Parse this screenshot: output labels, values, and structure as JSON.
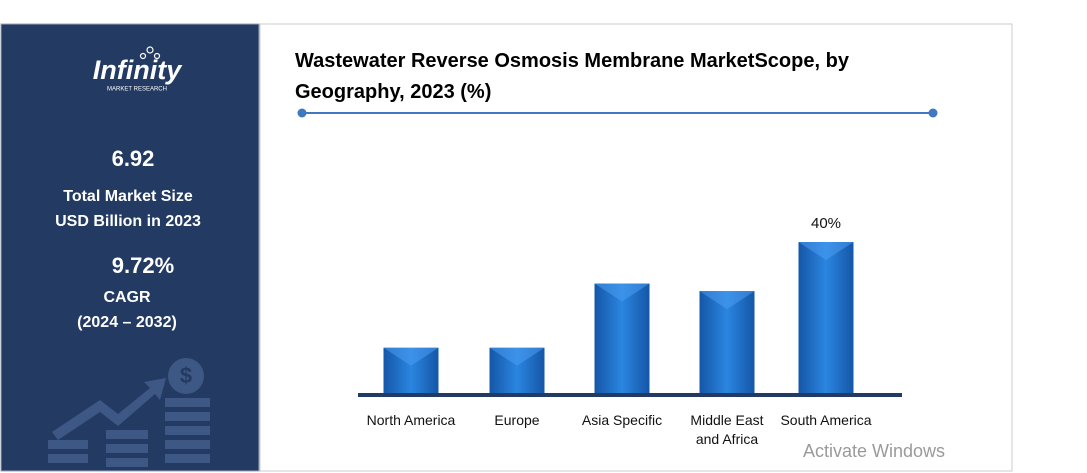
{
  "sidebar": {
    "logo": "Infinity",
    "logo_sub": "MARKET RESEARCH",
    "market_size": "6.92",
    "market_size_label": [
      "Total Market Size",
      "USD Billion in 2023"
    ],
    "cagr": "9.72%",
    "cagr_label": [
      "CAGR",
      "(2024 – 2032)"
    ]
  },
  "chart_data": {
    "type": "bar",
    "title": "Wastewater Reverse Osmosis Membrane MarketScope, by Geography, 2023 (%)",
    "categories": [
      "North America",
      "Europe",
      "Asia Specific",
      "Middle East and Africa",
      "South America"
    ],
    "values": [
      12,
      12,
      29,
      27,
      40
    ],
    "value_labels": [
      null,
      null,
      null,
      null,
      "40%"
    ],
    "color": "#1f6fc5"
  },
  "watermark": "Activate Windows"
}
